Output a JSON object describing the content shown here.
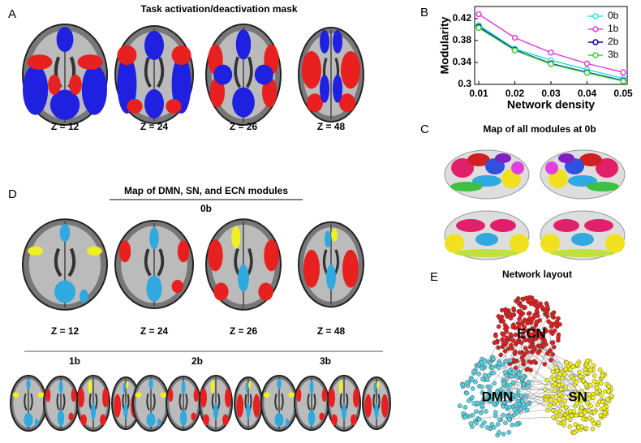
{
  "panel_a": {
    "label": "A",
    "title": "Task activation/deactivation mask",
    "z_labels": [
      "Z = 12",
      "Z = 24",
      "Z = 26",
      "Z = 48"
    ]
  },
  "panel_b": {
    "label": "B"
  },
  "chart_data": {
    "type": "line",
    "x_label": "Network density",
    "y_label": "Modularity",
    "x": [
      0.01,
      0.02,
      0.03,
      0.04,
      0.05
    ],
    "series": [
      {
        "name": "0b",
        "color": "#33e0e0",
        "values": [
          0.408,
          0.365,
          0.344,
          0.327,
          0.311
        ]
      },
      {
        "name": "1b",
        "color": "#e040e0",
        "values": [
          0.428,
          0.385,
          0.358,
          0.338,
          0.322
        ]
      },
      {
        "name": "2b",
        "color": "#0000a0",
        "values": [
          0.405,
          0.363,
          0.338,
          0.322,
          0.307
        ]
      },
      {
        "name": "3b",
        "color": "#40d040",
        "values": [
          0.403,
          0.362,
          0.337,
          0.321,
          0.306
        ]
      }
    ],
    "xlim": [
      0.01,
      0.05
    ],
    "xticks": [
      0.01,
      0.02,
      0.03,
      0.04,
      0.05
    ],
    "ylim": [
      0.3,
      0.442
    ],
    "yticks": [
      0.3,
      0.34,
      0.38,
      0.42
    ],
    "legend": "top-right"
  },
  "panel_c": {
    "label": "C",
    "title": "Map of all modules at 0b"
  },
  "panel_d": {
    "label": "D",
    "title": "Map of DMN, SN, and ECN modules",
    "conditions": [
      "0b",
      "1b",
      "2b",
      "3b"
    ],
    "z_labels": [
      "Z = 12",
      "Z = 24",
      "Z = 26",
      "Z = 48"
    ]
  },
  "panel_e": {
    "label": "E",
    "title": "Network layout",
    "modules": [
      "ECN",
      "DMN",
      "SN"
    ]
  }
}
